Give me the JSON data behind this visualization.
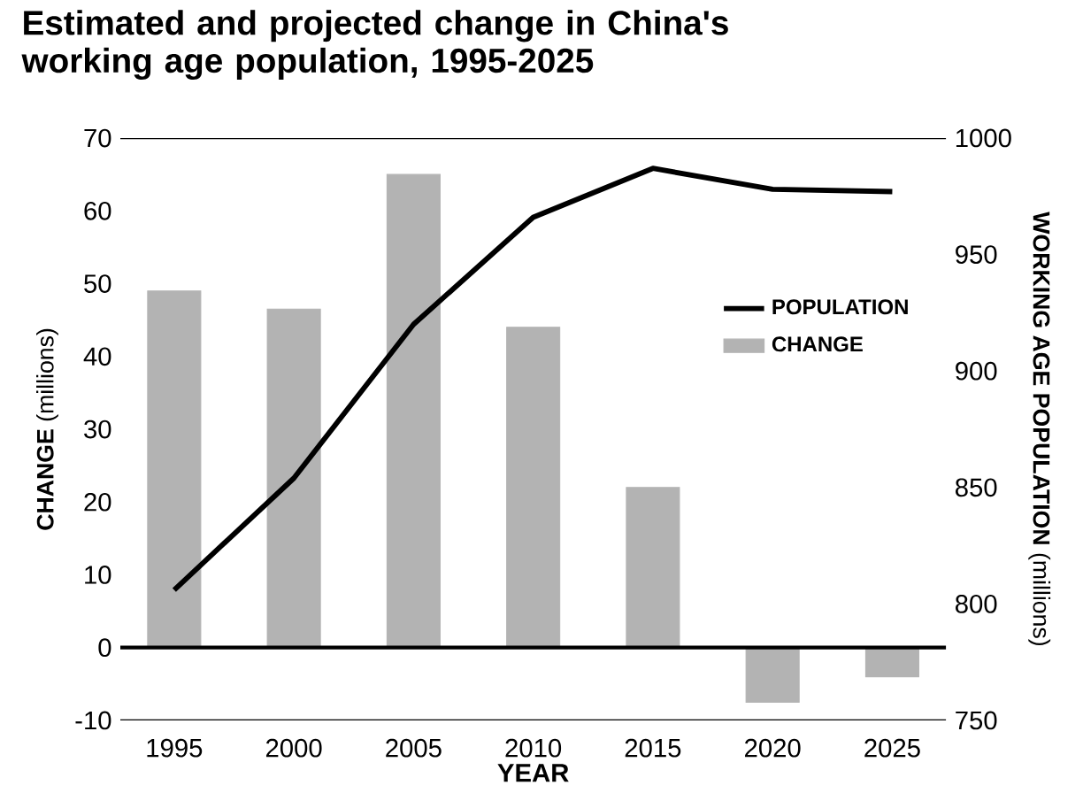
{
  "chart_data": {
    "type": "bar",
    "title": "Estimated and projected change in China's working age population, 1995-2025",
    "xlabel": "YEAR",
    "ylabel": "**CHANGE** (millions)",
    "y2label": "**WORKING AGE POPULATION** (millions)",
    "categories": [
      "1995",
      "2000",
      "2005",
      "2010",
      "2015",
      "2020",
      "2025"
    ],
    "series": [
      {
        "name": "CHANGE",
        "type": "bar",
        "color": "#b3b3b3",
        "values": [
          49,
          46.5,
          65,
          44,
          22,
          -7.5,
          -4
        ]
      },
      {
        "name": "POPULATION",
        "type": "line",
        "axis": "y2",
        "color": "#000000",
        "values": [
          806,
          854,
          920,
          966,
          987,
          978,
          977
        ]
      }
    ],
    "ylim": [
      -10,
      70
    ],
    "yticks": [
      -10,
      0,
      10,
      20,
      30,
      40,
      50,
      60,
      70
    ],
    "y2lim": [
      750,
      1000
    ],
    "y2ticks": [
      750,
      800,
      850,
      900,
      950,
      1000
    ],
    "ref_lines": [
      {
        "axis": "y",
        "value": 0,
        "color": "#000000"
      }
    ],
    "legend": "right",
    "grid": false,
    "marker": "none",
    "line_style": "solid"
  }
}
